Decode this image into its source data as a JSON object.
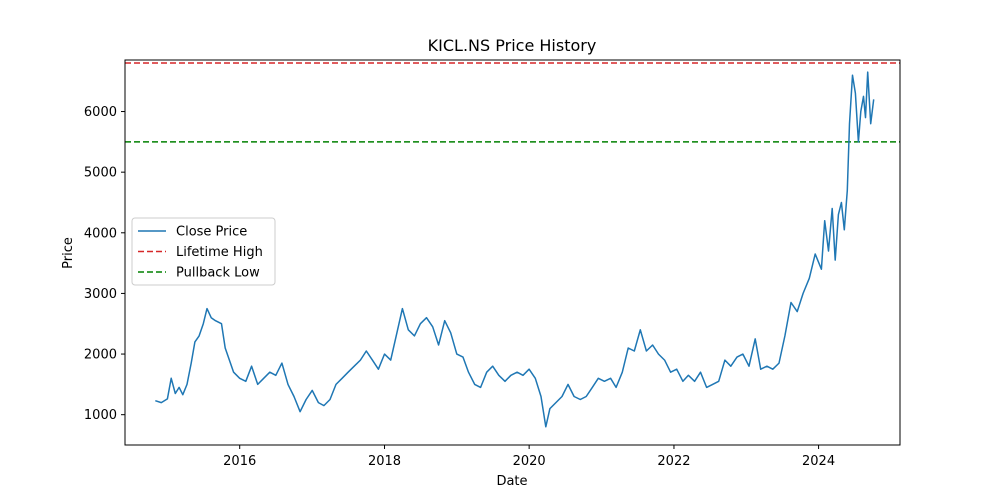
{
  "chart_data": {
    "type": "line",
    "title": "KICL.NS Price History",
    "xlabel": "Date",
    "ylabel": "Price",
    "xlim": [
      "2014-06-01",
      "2025-02-15"
    ],
    "ylim": [
      500,
      6850
    ],
    "x_ticks": [
      "2016-01-01",
      "2018-01-01",
      "2020-01-01",
      "2022-01-01",
      "2024-01-01"
    ],
    "x_tick_labels": [
      "2016",
      "2018",
      "2020",
      "2022",
      "2024"
    ],
    "y_ticks": [
      1000,
      2000,
      3000,
      4000,
      5000,
      6000
    ],
    "y_tick_labels": [
      "1000",
      "2000",
      "3000",
      "4000",
      "5000",
      "6000"
    ],
    "grid": false,
    "legend_position": "center-left",
    "series": [
      {
        "name": "Close Price",
        "color": "#1f77b4",
        "style": "solid",
        "points": [
          [
            "2014-11-01",
            1230
          ],
          [
            "2014-12-01",
            1200
          ],
          [
            "2015-01-01",
            1260
          ],
          [
            "2015-01-20",
            1600
          ],
          [
            "2015-02-10",
            1350
          ],
          [
            "2015-03-01",
            1450
          ],
          [
            "2015-03-20",
            1330
          ],
          [
            "2015-04-10",
            1500
          ],
          [
            "2015-05-01",
            1850
          ],
          [
            "2015-05-20",
            2200
          ],
          [
            "2015-06-10",
            2300
          ],
          [
            "2015-07-01",
            2500
          ],
          [
            "2015-07-20",
            2750
          ],
          [
            "2015-08-10",
            2600
          ],
          [
            "2015-09-01",
            2550
          ],
          [
            "2015-10-01",
            2500
          ],
          [
            "2015-10-20",
            2100
          ],
          [
            "2015-11-10",
            1900
          ],
          [
            "2015-12-01",
            1700
          ],
          [
            "2016-01-01",
            1600
          ],
          [
            "2016-02-01",
            1550
          ],
          [
            "2016-03-01",
            1800
          ],
          [
            "2016-04-01",
            1500
          ],
          [
            "2016-05-01",
            1600
          ],
          [
            "2016-06-01",
            1700
          ],
          [
            "2016-07-01",
            1650
          ],
          [
            "2016-08-01",
            1850
          ],
          [
            "2016-09-01",
            1500
          ],
          [
            "2016-10-01",
            1300
          ],
          [
            "2016-11-01",
            1050
          ],
          [
            "2016-12-01",
            1250
          ],
          [
            "2017-01-01",
            1400
          ],
          [
            "2017-02-01",
            1200
          ],
          [
            "2017-03-01",
            1150
          ],
          [
            "2017-04-01",
            1250
          ],
          [
            "2017-05-01",
            1500
          ],
          [
            "2017-06-01",
            1600
          ],
          [
            "2017-07-01",
            1700
          ],
          [
            "2017-08-01",
            1800
          ],
          [
            "2017-09-01",
            1900
          ],
          [
            "2017-10-01",
            2050
          ],
          [
            "2017-11-01",
            1900
          ],
          [
            "2017-12-01",
            1750
          ],
          [
            "2018-01-01",
            2000
          ],
          [
            "2018-02-01",
            1900
          ],
          [
            "2018-03-01",
            2300
          ],
          [
            "2018-04-01",
            2750
          ],
          [
            "2018-05-01",
            2400
          ],
          [
            "2018-06-01",
            2300
          ],
          [
            "2018-07-01",
            2500
          ],
          [
            "2018-08-01",
            2600
          ],
          [
            "2018-09-01",
            2450
          ],
          [
            "2018-10-01",
            2150
          ],
          [
            "2018-11-01",
            2550
          ],
          [
            "2018-12-01",
            2350
          ],
          [
            "2019-01-01",
            2000
          ],
          [
            "2019-02-01",
            1950
          ],
          [
            "2019-03-01",
            1700
          ],
          [
            "2019-04-01",
            1500
          ],
          [
            "2019-05-01",
            1450
          ],
          [
            "2019-06-01",
            1700
          ],
          [
            "2019-07-01",
            1800
          ],
          [
            "2019-08-01",
            1650
          ],
          [
            "2019-09-01",
            1550
          ],
          [
            "2019-10-01",
            1650
          ],
          [
            "2019-11-01",
            1700
          ],
          [
            "2019-12-01",
            1650
          ],
          [
            "2020-01-01",
            1750
          ],
          [
            "2020-02-01",
            1600
          ],
          [
            "2020-03-01",
            1300
          ],
          [
            "2020-03-25",
            800
          ],
          [
            "2020-04-15",
            1100
          ],
          [
            "2020-05-15",
            1200
          ],
          [
            "2020-06-15",
            1300
          ],
          [
            "2020-07-15",
            1500
          ],
          [
            "2020-08-15",
            1300
          ],
          [
            "2020-09-15",
            1250
          ],
          [
            "2020-10-15",
            1300
          ],
          [
            "2020-11-15",
            1450
          ],
          [
            "2020-12-15",
            1600
          ],
          [
            "2021-01-15",
            1550
          ],
          [
            "2021-02-15",
            1600
          ],
          [
            "2021-03-15",
            1450
          ],
          [
            "2021-04-15",
            1700
          ],
          [
            "2021-05-15",
            2100
          ],
          [
            "2021-06-15",
            2050
          ],
          [
            "2021-07-15",
            2400
          ],
          [
            "2021-08-15",
            2050
          ],
          [
            "2021-09-15",
            2150
          ],
          [
            "2021-10-15",
            2000
          ],
          [
            "2021-11-15",
            1900
          ],
          [
            "2021-12-15",
            1700
          ],
          [
            "2022-01-15",
            1750
          ],
          [
            "2022-02-15",
            1550
          ],
          [
            "2022-03-15",
            1650
          ],
          [
            "2022-04-15",
            1550
          ],
          [
            "2022-05-15",
            1700
          ],
          [
            "2022-06-15",
            1450
          ],
          [
            "2022-07-15",
            1500
          ],
          [
            "2022-08-15",
            1550
          ],
          [
            "2022-09-15",
            1900
          ],
          [
            "2022-10-15",
            1800
          ],
          [
            "2022-11-15",
            1950
          ],
          [
            "2022-12-15",
            2000
          ],
          [
            "2023-01-15",
            1800
          ],
          [
            "2023-02-15",
            2250
          ],
          [
            "2023-03-15",
            1750
          ],
          [
            "2023-04-15",
            1800
          ],
          [
            "2023-05-15",
            1750
          ],
          [
            "2023-06-15",
            1850
          ],
          [
            "2023-07-15",
            2300
          ],
          [
            "2023-08-15",
            2850
          ],
          [
            "2023-09-15",
            2700
          ],
          [
            "2023-10-15",
            3000
          ],
          [
            "2023-11-15",
            3250
          ],
          [
            "2023-12-15",
            3650
          ],
          [
            "2024-01-15",
            3400
          ],
          [
            "2024-02-01",
            4200
          ],
          [
            "2024-02-20",
            3700
          ],
          [
            "2024-03-10",
            4400
          ],
          [
            "2024-03-25",
            3550
          ],
          [
            "2024-04-10",
            4300
          ],
          [
            "2024-04-25",
            4500
          ],
          [
            "2024-05-10",
            4050
          ],
          [
            "2024-05-25",
            4700
          ],
          [
            "2024-06-05",
            5800
          ],
          [
            "2024-06-20",
            6600
          ],
          [
            "2024-07-05",
            6300
          ],
          [
            "2024-07-20",
            5500
          ],
          [
            "2024-08-01",
            6000
          ],
          [
            "2024-08-15",
            6250
          ],
          [
            "2024-08-25",
            5900
          ],
          [
            "2024-09-05",
            6650
          ],
          [
            "2024-09-20",
            5800
          ],
          [
            "2024-10-05",
            6200
          ]
        ]
      },
      {
        "name": "Lifetime High",
        "color": "#d62728",
        "style": "dashed",
        "hline": 6800
      },
      {
        "name": "Pullback Low",
        "color": "#008000",
        "style": "dashed",
        "hline": 5500
      }
    ]
  }
}
